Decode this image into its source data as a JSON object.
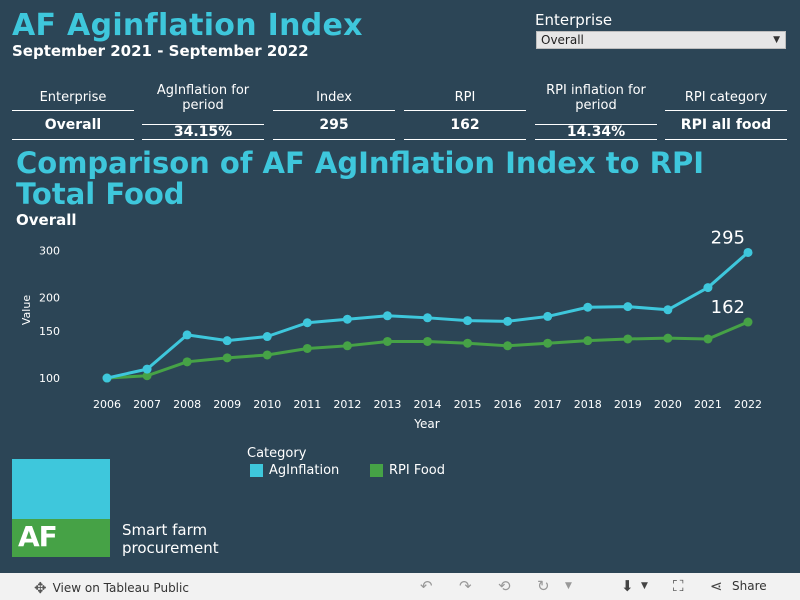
{
  "header": {
    "title": "AF Aginflation Index",
    "subtitle": "September 2021 - September 2022"
  },
  "filter": {
    "label": "Enterprise",
    "selected": "Overall"
  },
  "kpis": [
    {
      "header": "Enterprise",
      "value": "Overall"
    },
    {
      "header": "AgInflation for period",
      "value": "34.15%"
    },
    {
      "header": "Index",
      "value": "295"
    },
    {
      "header": "RPI",
      "value": "162"
    },
    {
      "header": "RPI inflation for period",
      "value": "14.34%"
    },
    {
      "header": "RPI category",
      "value": "RPI all food"
    }
  ],
  "chart_title": "Comparison of AF AgInflation Index to RPI Total Food",
  "chart_subtitle": "Overall",
  "chart_data": {
    "type": "line",
    "x": [
      2006,
      2007,
      2008,
      2009,
      2010,
      2011,
      2012,
      2013,
      2014,
      2015,
      2016,
      2017,
      2018,
      2019,
      2020,
      2021,
      2022
    ],
    "series": [
      {
        "name": "AgInflation",
        "color": "#3ec7dc",
        "values": [
          100,
          108,
          145,
          138,
          143,
          161,
          166,
          171,
          168,
          164,
          163,
          170,
          184,
          185,
          180,
          218,
          295
        ]
      },
      {
        "name": "RPI Food",
        "color": "#46a246",
        "values": [
          100,
          102,
          115,
          119,
          122,
          129,
          132,
          137,
          137,
          135,
          132,
          135,
          138,
          140,
          141,
          140,
          162
        ]
      }
    ],
    "end_labels": [
      "295",
      "162"
    ],
    "xlabel": "Year",
    "ylabel": "Value",
    "yticks": [
      100,
      150,
      200,
      300
    ],
    "yscale": "log",
    "ylim": [
      95,
      320
    ],
    "grid": false,
    "legend_title": "Category",
    "legend": [
      "AgInflation",
      "RPI Food"
    ]
  },
  "logo": {
    "mark": "AF",
    "line1": "Smart farm",
    "line2": "procurement"
  },
  "footer": {
    "view_label": "View on Tableau Public",
    "share_label": "Share"
  }
}
